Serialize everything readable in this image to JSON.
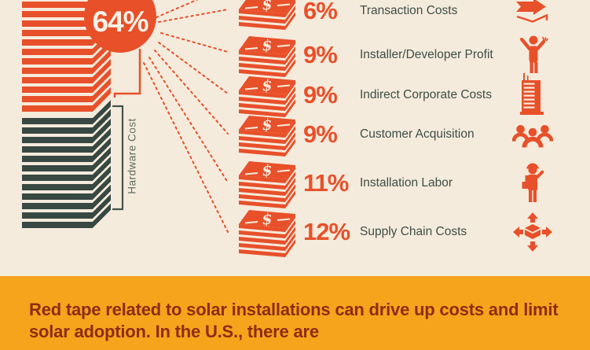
{
  "colors": {
    "background": "#F5EBDC",
    "orange": "#E8502A",
    "teal": "#384842",
    "banner_bg": "#F6A41C",
    "banner_text": "#8C2D12",
    "label_text": "#3E4E47",
    "hardware_label_text": "#5C6B63"
  },
  "stack": {
    "soft_costs_pct_label": "64%",
    "hardware_label": "Hardware Cost"
  },
  "money_icon": {
    "glyph": "$"
  },
  "rows": [
    {
      "pct": "6%",
      "label": "Transaction Costs",
      "icon": "transfer-arrows"
    },
    {
      "pct": "9%",
      "label": "Installer/Developer Profit",
      "icon": "person-gesturing"
    },
    {
      "pct": "9%",
      "label": "Indirect Corporate Costs",
      "icon": "office-building"
    },
    {
      "pct": "9%",
      "label": "Customer Acquisition",
      "icon": "people-group"
    },
    {
      "pct": "11%",
      "label": "Installation Labor",
      "icon": "construction-worker"
    },
    {
      "pct": "12%",
      "label": "Supply Chain Costs",
      "icon": "box-distribution-arrows"
    }
  ],
  "banner": {
    "text": "Red tape related to solar installations can drive up costs and limit solar adoption. In the U.S., there are"
  },
  "chart_data": {
    "type": "bar",
    "title": "Solar installation cost breakdown (soft costs vs hardware)",
    "categories": [
      "Transaction Costs",
      "Installer/Developer Profit",
      "Indirect Corporate Costs",
      "Customer Acquisition",
      "Installation Labor",
      "Supply Chain Costs"
    ],
    "values": [
      6,
      9,
      9,
      9,
      11,
      12
    ],
    "annotations": {
      "soft_costs_total_pct": 64,
      "hardware_segment_label": "Hardware Cost"
    },
    "legend_position": "none",
    "grid": false
  }
}
